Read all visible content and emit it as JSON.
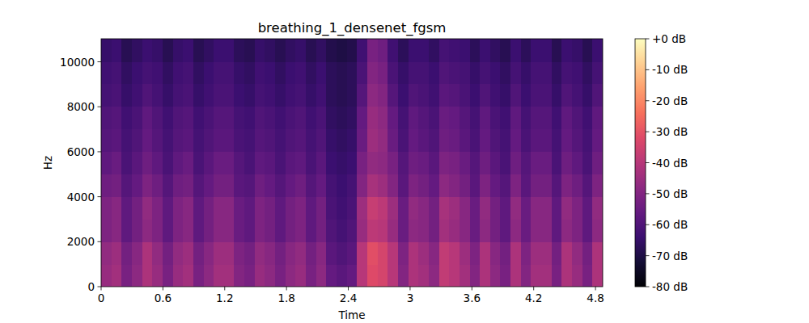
{
  "chart_data": {
    "type": "heatmap",
    "title": "breathing_1_densenet_fgsm",
    "x_label": "Time",
    "y_label": "Hz",
    "xlim": [
      0,
      4.87
    ],
    "ylim": [
      0,
      11025
    ],
    "xticks": [
      0,
      0.6,
      1.2,
      1.8,
      2.4,
      3,
      3.6,
      4.2,
      4.8
    ],
    "yticks": [
      0,
      2000,
      4000,
      6000,
      8000,
      10000
    ],
    "values": [
      [
        -46,
        -44,
        -52,
        -48,
        -42,
        -46,
        -52,
        -46,
        -44,
        -52,
        -48,
        -44,
        -44,
        -50,
        -52,
        -46,
        -48,
        -52,
        -48,
        -46,
        -52,
        -48,
        -56,
        -58,
        -56,
        -40,
        -32,
        -34,
        -40,
        -50,
        -42,
        -44,
        -48,
        -38,
        -40,
        -44,
        -50,
        -42,
        -48,
        -52,
        -42,
        -50,
        -44,
        -44,
        -52,
        -42,
        -46,
        -52,
        -42
      ],
      [
        -47,
        -45,
        -53,
        -49,
        -42,
        -47,
        -53,
        -47,
        -45,
        -53,
        -49,
        -45,
        -45,
        -51,
        -53,
        -47,
        -49,
        -53,
        -49,
        -47,
        -53,
        -49,
        -58,
        -60,
        -58,
        -40,
        -31,
        -34,
        -40,
        -51,
        -42,
        -45,
        -49,
        -38,
        -40,
        -45,
        -51,
        -42,
        -49,
        -53,
        -42,
        -51,
        -45,
        -45,
        -53,
        -42,
        -47,
        -53,
        -42
      ],
      [
        -51,
        -49,
        -57,
        -53,
        -48,
        -51,
        -57,
        -51,
        -49,
        -57,
        -53,
        -49,
        -49,
        -55,
        -57,
        -51,
        -53,
        -57,
        -53,
        -51,
        -57,
        -53,
        -60,
        -62,
        -60,
        -46,
        -39,
        -40,
        -46,
        -55,
        -48,
        -49,
        -53,
        -44,
        -46,
        -49,
        -55,
        -48,
        -53,
        -57,
        -48,
        -55,
        -49,
        -49,
        -57,
        -48,
        -51,
        -57,
        -48
      ],
      [
        -51,
        -49,
        -57,
        -53,
        -47,
        -51,
        -57,
        -51,
        -49,
        -57,
        -53,
        -49,
        -49,
        -55,
        -57,
        -51,
        -53,
        -57,
        -53,
        -51,
        -57,
        -53,
        -61,
        -63,
        -61,
        -45,
        -37,
        -39,
        -45,
        -55,
        -47,
        -49,
        -53,
        -43,
        -45,
        -49,
        -55,
        -47,
        -53,
        -57,
        -47,
        -55,
        -49,
        -49,
        -57,
        -47,
        -51,
        -57,
        -47
      ],
      [
        -54,
        -53,
        -59,
        -56,
        -51,
        -54,
        -59,
        -54,
        -53,
        -59,
        -56,
        -53,
        -53,
        -58,
        -59,
        -54,
        -56,
        -59,
        -56,
        -54,
        -59,
        -56,
        -62,
        -64,
        -62,
        -50,
        -43,
        -45,
        -50,
        -58,
        -51,
        -53,
        -56,
        -48,
        -50,
        -53,
        -58,
        -51,
        -56,
        -59,
        -51,
        -58,
        -53,
        -53,
        -59,
        -51,
        -54,
        -59,
        -51
      ],
      [
        -57,
        -55,
        -61,
        -58,
        -54,
        -57,
        -61,
        -57,
        -55,
        -61,
        -58,
        -55,
        -55,
        -59,
        -61,
        -57,
        -58,
        -61,
        -58,
        -57,
        -61,
        -58,
        -64,
        -65,
        -64,
        -52,
        -47,
        -48,
        -52,
        -59,
        -54,
        -55,
        -58,
        -51,
        -52,
        -55,
        -59,
        -54,
        -58,
        -61,
        -54,
        -59,
        -55,
        -55,
        -61,
        -54,
        -57,
        -61,
        -54
      ],
      [
        -59,
        -58,
        -62,
        -60,
        -56,
        -59,
        -62,
        -59,
        -58,
        -62,
        -60,
        -58,
        -58,
        -61,
        -62,
        -59,
        -60,
        -62,
        -60,
        -59,
        -62,
        -60,
        -65,
        -66,
        -65,
        -55,
        -45,
        -47,
        -55,
        -61,
        -56,
        -58,
        -60,
        -54,
        -55,
        -58,
        -61,
        -56,
        -60,
        -62,
        -56,
        -61,
        -58,
        -58,
        -62,
        -56,
        -59,
        -62,
        -56
      ],
      [
        -60,
        -59,
        -63,
        -61,
        -57,
        -60,
        -63,
        -60,
        -59,
        -63,
        -61,
        -59,
        -59,
        -62,
        -63,
        -60,
        -61,
        -63,
        -61,
        -60,
        -63,
        -61,
        -66,
        -67,
        -66,
        -56,
        -46,
        -48,
        -56,
        -62,
        -57,
        -59,
        -61,
        -55,
        -56,
        -59,
        -62,
        -57,
        -61,
        -63,
        -57,
        -62,
        -59,
        -59,
        -63,
        -57,
        -60,
        -63,
        -57
      ],
      [
        -62,
        -61,
        -65,
        -63,
        -60,
        -62,
        -65,
        -62,
        -61,
        -65,
        -63,
        -61,
        -61,
        -64,
        -65,
        -62,
        -63,
        -65,
        -63,
        -62,
        -65,
        -63,
        -67,
        -68,
        -67,
        -59,
        -48,
        -50,
        -59,
        -64,
        -60,
        -61,
        -63,
        -58,
        -59,
        -61,
        -64,
        -60,
        -63,
        -65,
        -60,
        -64,
        -61,
        -61,
        -65,
        -60,
        -62,
        -65,
        -60
      ],
      [
        -63,
        -62,
        -66,
        -64,
        -62,
        -63,
        -66,
        -63,
        -62,
        -66,
        -64,
        -62,
        -62,
        -65,
        -66,
        -63,
        -64,
        -66,
        -64,
        -63,
        -66,
        -64,
        -67,
        -68,
        -67,
        -61,
        -50,
        -52,
        -61,
        -65,
        -62,
        -62,
        -64,
        -60,
        -61,
        -62,
        -65,
        -62,
        -64,
        -66,
        -62,
        -65,
        -62,
        -62,
        -66,
        -62,
        -63,
        -66,
        -62
      ],
      [
        -65,
        -64,
        -68,
        -66,
        -64,
        -65,
        -68,
        -65,
        -64,
        -68,
        -66,
        -64,
        -64,
        -67,
        -68,
        -65,
        -66,
        -68,
        -66,
        -65,
        -68,
        -66,
        -69,
        -70,
        -69,
        -63,
        -52,
        -54,
        -63,
        -67,
        -64,
        -64,
        -66,
        -62,
        -63,
        -64,
        -67,
        -64,
        -66,
        -68,
        -64,
        -67,
        -64,
        -64,
        -68,
        -64,
        -65,
        -68,
        -64
      ]
    ],
    "colorbar_lim": [
      -80,
      0
    ],
    "colorbar_ticks": [
      {
        "value": 0,
        "label": "+0 dB"
      },
      {
        "value": -10,
        "label": "-10 dB"
      },
      {
        "value": -20,
        "label": "-20 dB"
      },
      {
        "value": -30,
        "label": "-30 dB"
      },
      {
        "value": -40,
        "label": "-40 dB"
      },
      {
        "value": -50,
        "label": "-50 dB"
      },
      {
        "value": -60,
        "label": "-60 dB"
      },
      {
        "value": -70,
        "label": "-70 dB"
      },
      {
        "value": -80,
        "label": "-80 dB"
      }
    ]
  }
}
